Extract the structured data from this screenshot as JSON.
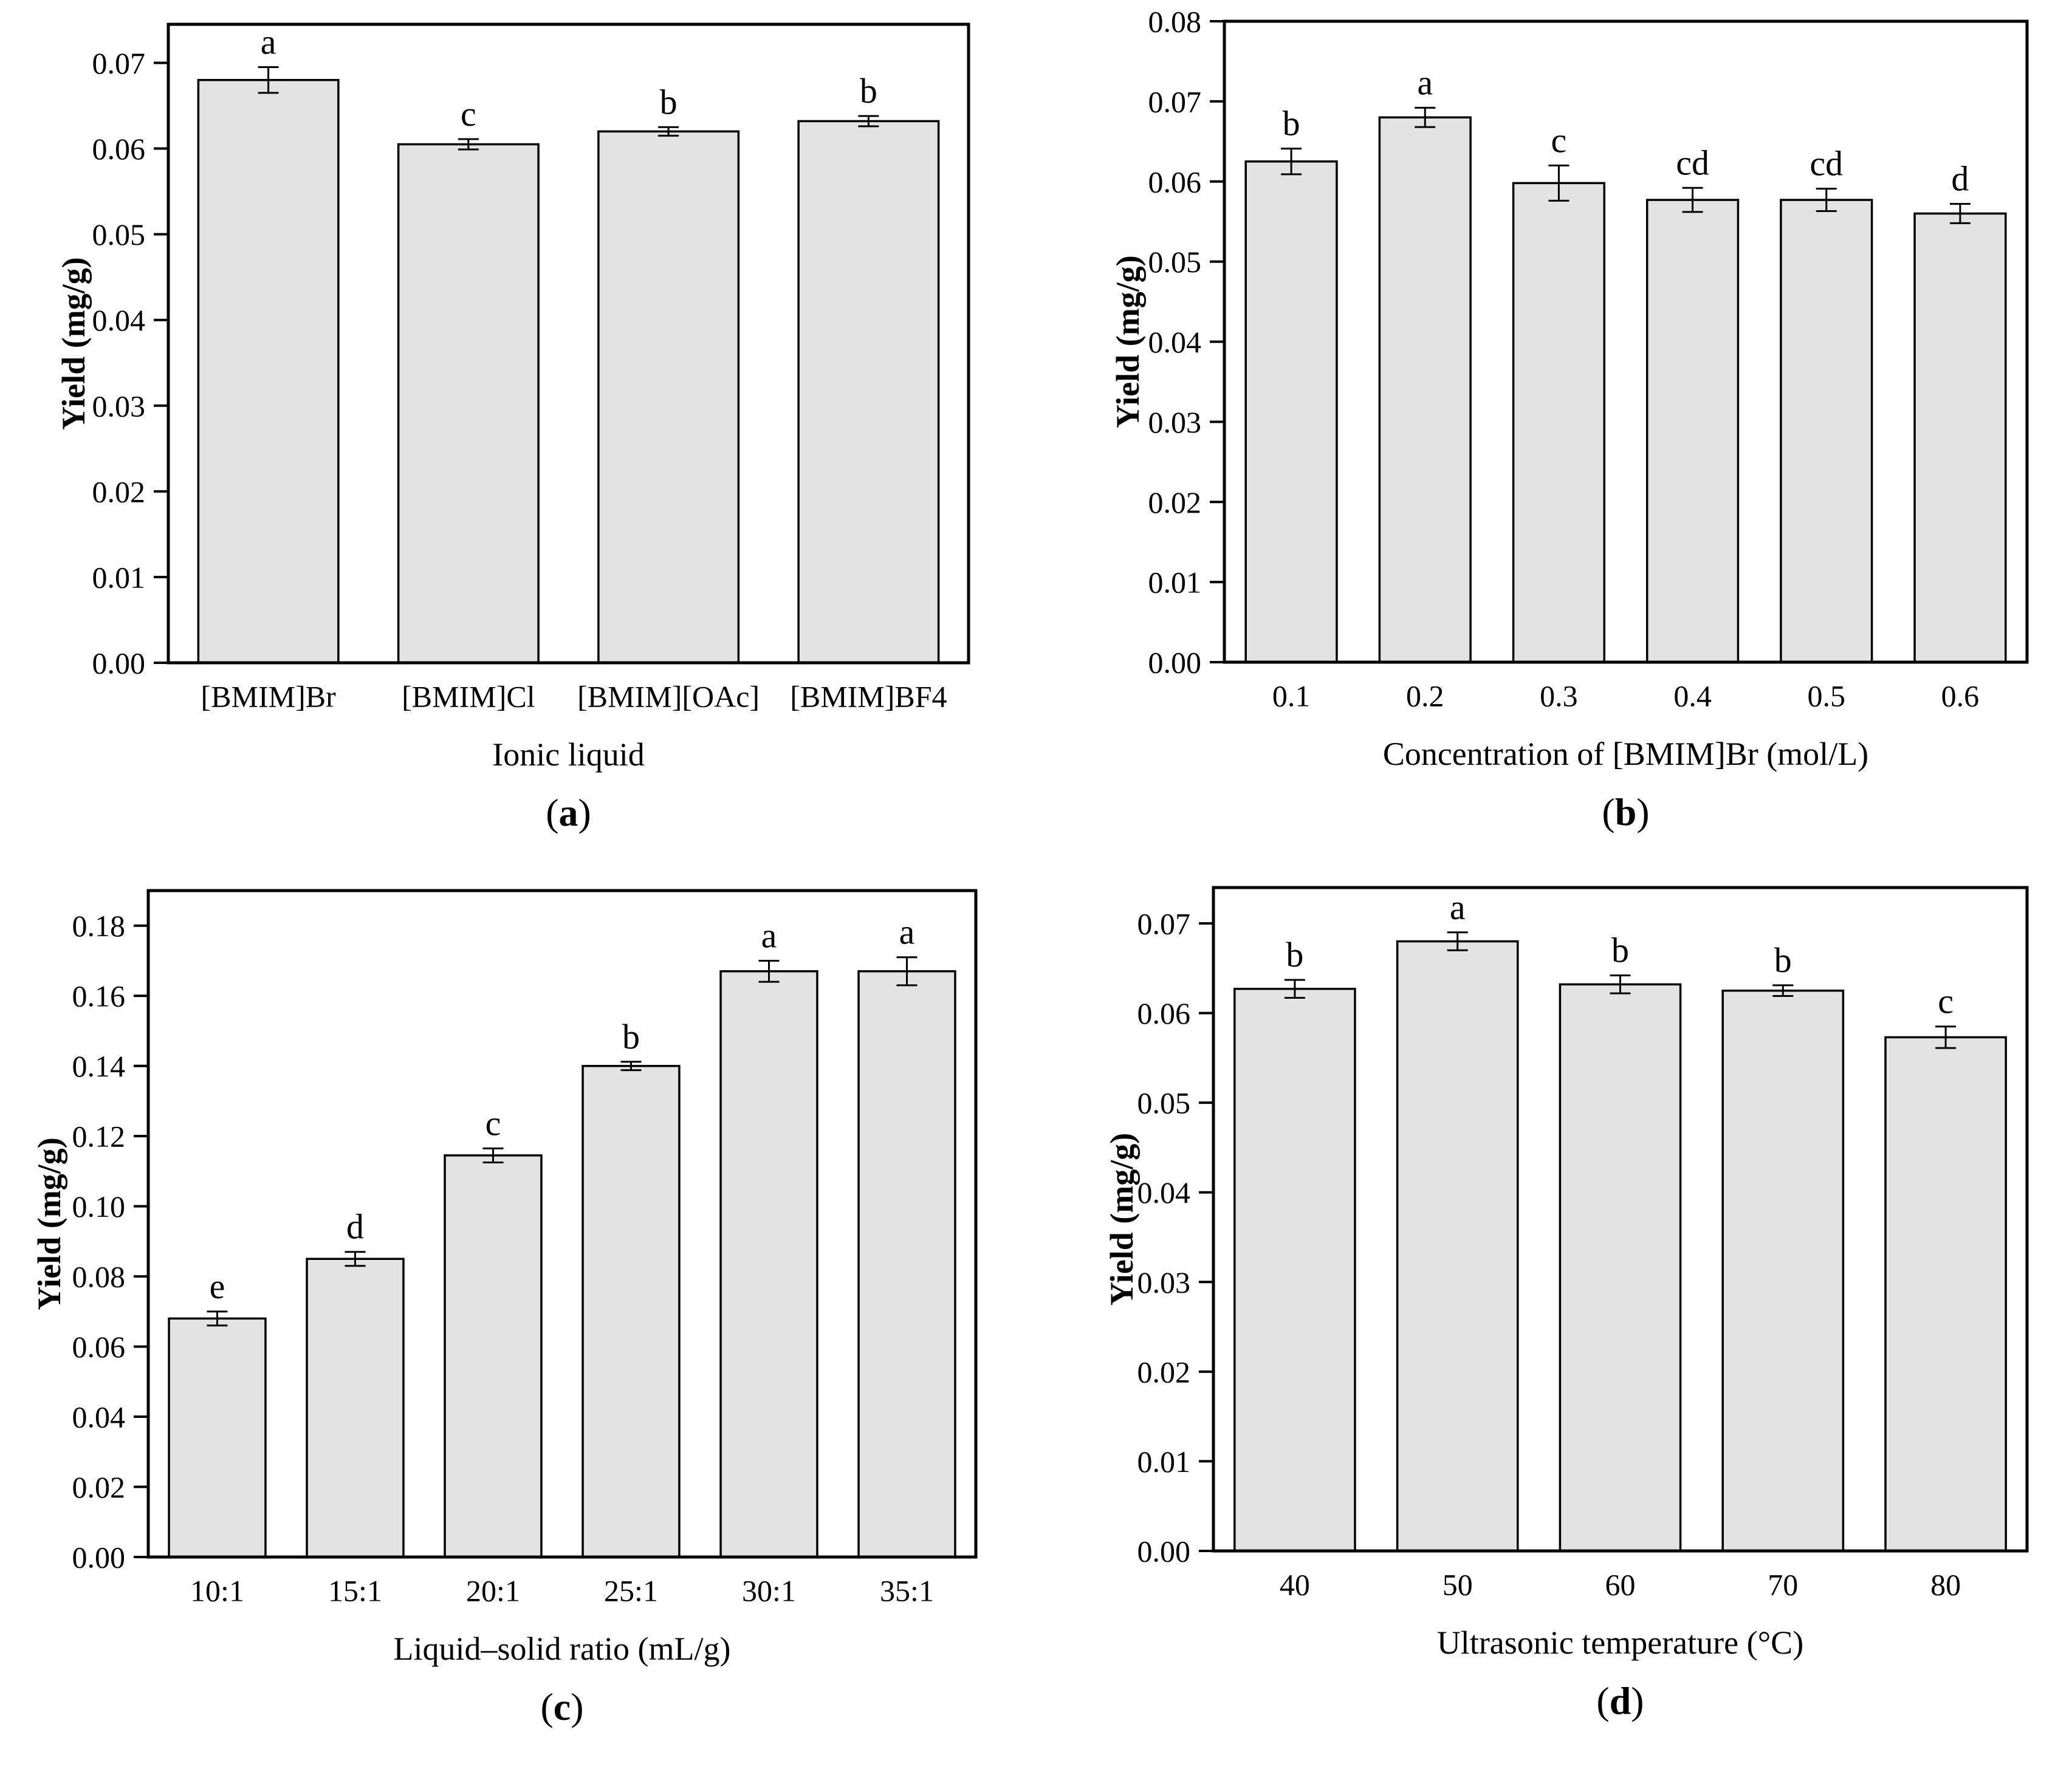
{
  "figure": {
    "background": "#ffffff",
    "bar_fill": "#e3e3e3",
    "bar_stroke": "#000000",
    "axis_color": "#000000",
    "error_bar_color": "#000000"
  },
  "chart_data": [
    {
      "panel": "a",
      "type": "bar",
      "title": "",
      "categories": [
        "[BMIM]Br",
        "[BMIM]Cl",
        "[BMIM][OAc]",
        "[BMIM]BF4"
      ],
      "values": [
        0.068,
        0.0605,
        0.062,
        0.0632
      ],
      "errors": [
        0.0015,
        0.0006,
        0.0005,
        0.0006
      ],
      "sig_letters": [
        "a",
        "c",
        "b",
        "b"
      ],
      "xlabel": "Ionic liquid",
      "ylabel": "Yield (mg/g)",
      "ylim": [
        0,
        0.0745
      ],
      "ytick_max": 0.07,
      "ytick_step": 0.01,
      "ytick_decimals": 2,
      "grid": false,
      "legend": "none",
      "panel_letter": "a"
    },
    {
      "panel": "b",
      "type": "bar",
      "title": "",
      "categories": [
        "0.1",
        "0.2",
        "0.3",
        "0.4",
        "0.5",
        "0.6"
      ],
      "values": [
        0.0625,
        0.068,
        0.0598,
        0.0577,
        0.0577,
        0.056
      ],
      "errors": [
        0.0016,
        0.0012,
        0.0022,
        0.0015,
        0.0014,
        0.0012
      ],
      "sig_letters": [
        "b",
        "a",
        "c",
        "cd",
        "cd",
        "d"
      ],
      "xlabel": "Concentration of [BMIM]Br (mol/L)",
      "ylabel": "Yield (mg/g)",
      "ylim": [
        0,
        0.08
      ],
      "ytick_max": 0.08,
      "ytick_step": 0.01,
      "ytick_decimals": 2,
      "grid": false,
      "legend": "none",
      "panel_letter": "b"
    },
    {
      "panel": "c",
      "type": "bar",
      "title": "",
      "categories": [
        "10:1",
        "15:1",
        "20:1",
        "25:1",
        "30:1",
        "35:1"
      ],
      "values": [
        0.068,
        0.085,
        0.1145,
        0.14,
        0.167,
        0.167
      ],
      "errors": [
        0.002,
        0.002,
        0.002,
        0.0012,
        0.003,
        0.004
      ],
      "sig_letters": [
        "e",
        "d",
        "c",
        "b",
        "a",
        "a"
      ],
      "xlabel": "Liquid–solid ratio (mL/g)",
      "ylabel": "Yield (mg/g)",
      "ylim": [
        0,
        0.19
      ],
      "ytick_max": 0.18,
      "ytick_step": 0.02,
      "ytick_decimals": 2,
      "grid": false,
      "legend": "none",
      "panel_letter": "c"
    },
    {
      "panel": "d",
      "type": "bar",
      "title": "",
      "categories": [
        "40",
        "50",
        "60",
        "70",
        "80"
      ],
      "values": [
        0.0627,
        0.068,
        0.0632,
        0.0625,
        0.0573
      ],
      "errors": [
        0.001,
        0.001,
        0.001,
        0.0006,
        0.0012
      ],
      "sig_letters": [
        "b",
        "a",
        "b",
        "b",
        "c"
      ],
      "xlabel": "Ultrasonic temperature (°C)",
      "ylabel": "Yield (mg/g)",
      "ylim": [
        0,
        0.074
      ],
      "ytick_max": 0.07,
      "ytick_step": 0.01,
      "ytick_decimals": 2,
      "grid": false,
      "legend": "none",
      "panel_letter": "d"
    }
  ]
}
